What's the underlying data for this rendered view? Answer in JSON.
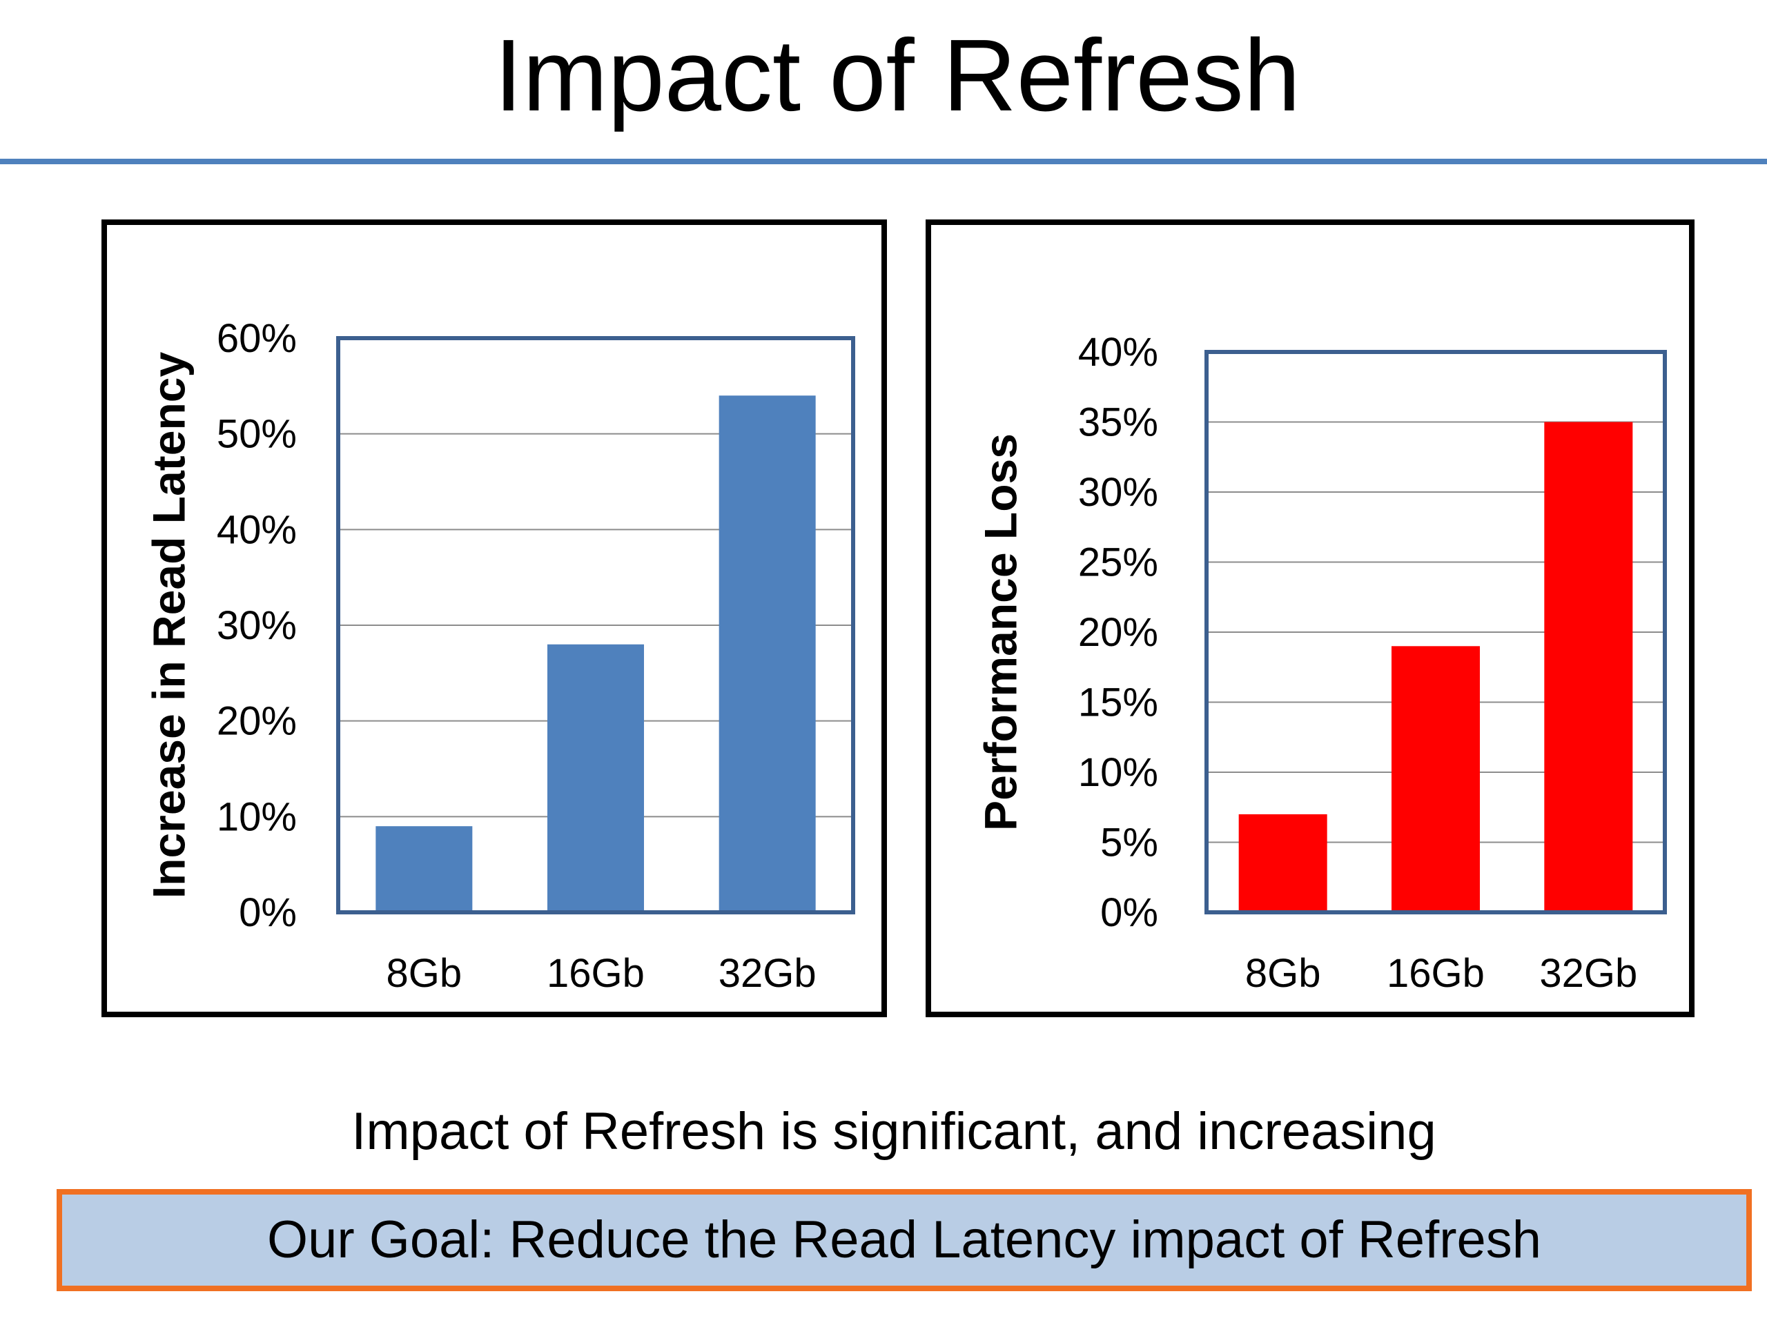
{
  "slide": {
    "title": "Impact of Refresh",
    "conclusion": "Impact of Refresh is significant, and increasing",
    "goal": "Our Goal: Reduce the Read Latency impact of Refresh",
    "accent_color": "#4f81bd",
    "goal_box_fill": "#b9cde5",
    "goal_box_border": "#f07022"
  },
  "chart_data": [
    {
      "type": "bar",
      "categories": [
        "8Gb",
        "16Gb",
        "32Gb"
      ],
      "values": [
        9,
        28,
        54
      ],
      "ylabel": "Increase in Read Latency",
      "ylim": [
        0,
        60
      ],
      "yticks": [
        "0%",
        "10%",
        "20%",
        "30%",
        "40%",
        "50%",
        "60%"
      ],
      "grid": true,
      "bar_color": "#4f81bd"
    },
    {
      "type": "bar",
      "categories": [
        "8Gb",
        "16Gb",
        "32Gb"
      ],
      "values": [
        7,
        19,
        35
      ],
      "ylabel": "Performance Loss",
      "ylim": [
        0,
        40
      ],
      "yticks": [
        "0%",
        "5%",
        "10%",
        "15%",
        "20%",
        "25%",
        "30%",
        "35%",
        "40%"
      ],
      "grid": true,
      "bar_color": "#ff0000"
    }
  ]
}
